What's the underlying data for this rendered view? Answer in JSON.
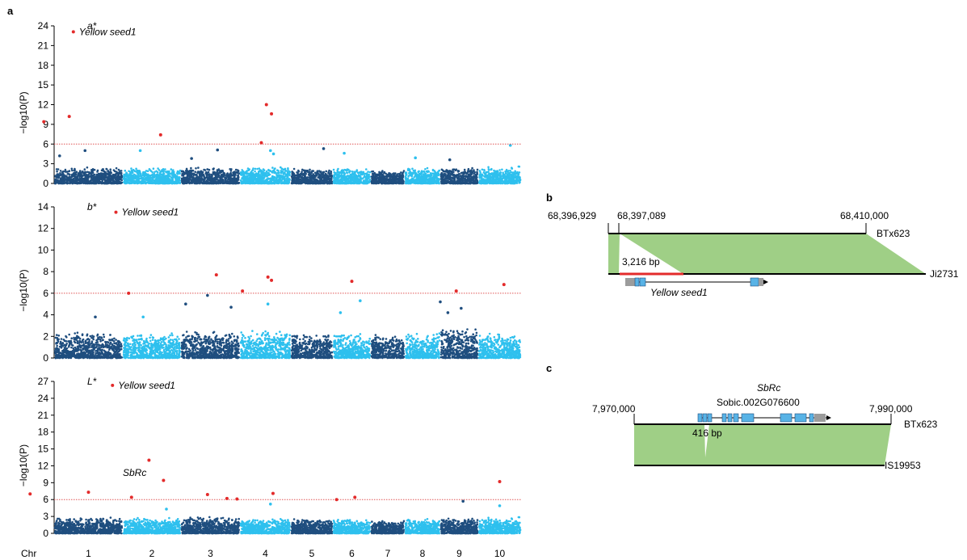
{
  "panel_labels": {
    "a": "a",
    "b": "b",
    "c": "c"
  },
  "colors": {
    "dark_blue": "#1f4e7f",
    "light_blue": "#2ec0ee",
    "signif_red": "#e32b2b",
    "threshold_line": "#e05555",
    "band_green": "#9fcf86",
    "deletion_red": "#e32b2b",
    "exon_blue": "#58b3e6",
    "utr_gray": "#9c9c9c"
  },
  "chart_data": [
    {
      "type": "scatter",
      "name": "manhattan-a-star",
      "trait": "a*",
      "annotation": "Yellow seed1",
      "ylabel": "−log10(P)",
      "ylim": [
        0,
        24
      ],
      "yticks": [
        0,
        3,
        6,
        9,
        12,
        15,
        18,
        21,
        24
      ],
      "threshold": 6,
      "categories": [
        "1",
        "2",
        "3",
        "4",
        "5",
        "6",
        "7",
        "8",
        "9",
        "10"
      ],
      "noise_max": [
        2.5,
        2.4,
        2.5,
        2.6,
        2.3,
        2.4,
        2.1,
        2.4,
        2.5,
        2.6
      ],
      "highlight_points": [
        {
          "chr": "1",
          "pos": 0.28,
          "y": 23.1
        },
        {
          "chr": "1",
          "pos": -0.15,
          "y": 9.4
        },
        {
          "chr": "1",
          "pos": 0.22,
          "y": 10.2
        },
        {
          "chr": "2",
          "pos": 0.65,
          "y": 7.4
        },
        {
          "chr": "4",
          "pos": 0.52,
          "y": 12.0
        },
        {
          "chr": "4",
          "pos": 0.62,
          "y": 10.6
        },
        {
          "chr": "4",
          "pos": 0.42,
          "y": 6.2
        }
      ],
      "sub_points": [
        {
          "chr": "1",
          "pos": 0.08,
          "y": 4.2
        },
        {
          "chr": "1",
          "pos": 0.45,
          "y": 5.0
        },
        {
          "chr": "2",
          "pos": 0.3,
          "y": 5.0
        },
        {
          "chr": "3",
          "pos": 0.18,
          "y": 3.8
        },
        {
          "chr": "3",
          "pos": 0.62,
          "y": 5.1
        },
        {
          "chr": "4",
          "pos": 0.6,
          "y": 5.0
        },
        {
          "chr": "4",
          "pos": 0.66,
          "y": 4.5
        },
        {
          "chr": "5",
          "pos": 0.78,
          "y": 5.3
        },
        {
          "chr": "6",
          "pos": 0.3,
          "y": 4.6
        },
        {
          "chr": "8",
          "pos": 0.3,
          "y": 3.9
        },
        {
          "chr": "9",
          "pos": 0.25,
          "y": 3.6
        },
        {
          "chr": "10",
          "pos": 0.75,
          "y": 5.8
        }
      ]
    },
    {
      "type": "scatter",
      "name": "manhattan-b-star",
      "trait": "b*",
      "annotation": "Yellow seed1",
      "ylabel": "−log10(P)",
      "ylim": [
        0,
        14
      ],
      "yticks": [
        0,
        2,
        4,
        6,
        8,
        10,
        12,
        14
      ],
      "threshold": 6,
      "categories": [
        "1",
        "2",
        "3",
        "4",
        "5",
        "6",
        "7",
        "8",
        "9",
        "10"
      ],
      "noise_max": [
        2.4,
        2.3,
        2.6,
        2.6,
        2.3,
        2.3,
        2.2,
        2.4,
        2.8,
        2.4
      ],
      "highlight_points": [
        {
          "chr": "1",
          "pos": 0.9,
          "y": 13.5
        },
        {
          "chr": "2",
          "pos": 0.1,
          "y": 6.0
        },
        {
          "chr": "3",
          "pos": 0.6,
          "y": 7.7
        },
        {
          "chr": "4",
          "pos": 0.05,
          "y": 6.2
        },
        {
          "chr": "4",
          "pos": 0.55,
          "y": 7.5
        },
        {
          "chr": "4",
          "pos": 0.62,
          "y": 7.2
        },
        {
          "chr": "6",
          "pos": 0.5,
          "y": 7.1
        },
        {
          "chr": "9",
          "pos": 0.42,
          "y": 6.2
        },
        {
          "chr": "10",
          "pos": 0.6,
          "y": 6.8
        }
      ],
      "sub_points": [
        {
          "chr": "1",
          "pos": 0.6,
          "y": 3.8
        },
        {
          "chr": "2",
          "pos": 0.35,
          "y": 3.8
        },
        {
          "chr": "3",
          "pos": 0.08,
          "y": 5.0
        },
        {
          "chr": "3",
          "pos": 0.45,
          "y": 5.8
        },
        {
          "chr": "3",
          "pos": 0.85,
          "y": 4.7
        },
        {
          "chr": "4",
          "pos": 0.55,
          "y": 5.0
        },
        {
          "chr": "6",
          "pos": 0.2,
          "y": 4.2
        },
        {
          "chr": "6",
          "pos": 0.72,
          "y": 5.3
        },
        {
          "chr": "9",
          "pos": 0.0,
          "y": 5.2
        },
        {
          "chr": "9",
          "pos": 0.55,
          "y": 4.6
        },
        {
          "chr": "9",
          "pos": 0.2,
          "y": 4.2
        }
      ]
    },
    {
      "type": "scatter",
      "name": "manhattan-l-star",
      "trait": "L*",
      "annotation": "Yellow seed1",
      "annotation2": "SbRc",
      "ylabel": "−log10(P)",
      "ylim": [
        0,
        27
      ],
      "yticks": [
        0,
        3,
        6,
        9,
        12,
        15,
        18,
        21,
        24,
        27
      ],
      "threshold": 6,
      "categories": [
        "1",
        "2",
        "3",
        "4",
        "5",
        "6",
        "7",
        "8",
        "9",
        "10"
      ],
      "noise_max": [
        2.8,
        2.8,
        3.0,
        2.7,
        2.6,
        2.6,
        2.4,
        2.6,
        2.8,
        2.9
      ],
      "highlight_points": [
        {
          "chr": "1",
          "pos": 0.85,
          "y": 26.3
        },
        {
          "chr": "1",
          "pos": -0.35,
          "y": 7.0
        },
        {
          "chr": "1",
          "pos": 0.5,
          "y": 7.3
        },
        {
          "chr": "2",
          "pos": 0.15,
          "y": 6.4
        },
        {
          "chr": "2",
          "pos": 0.45,
          "y": 13.0
        },
        {
          "chr": "2",
          "pos": 0.7,
          "y": 9.4
        },
        {
          "chr": "3",
          "pos": 0.45,
          "y": 6.9
        },
        {
          "chr": "3",
          "pos": 0.78,
          "y": 6.2
        },
        {
          "chr": "3",
          "pos": 0.95,
          "y": 6.1
        },
        {
          "chr": "4",
          "pos": 0.65,
          "y": 7.1
        },
        {
          "chr": "6",
          "pos": 0.1,
          "y": 6.0
        },
        {
          "chr": "6",
          "pos": 0.58,
          "y": 6.4
        },
        {
          "chr": "10",
          "pos": 0.5,
          "y": 9.2
        }
      ],
      "sub_points": [
        {
          "chr": "2",
          "pos": 0.75,
          "y": 4.3
        },
        {
          "chr": "4",
          "pos": 0.6,
          "y": 5.2
        },
        {
          "chr": "9",
          "pos": 0.6,
          "y": 5.7
        },
        {
          "chr": "10",
          "pos": 0.5,
          "y": 4.9
        }
      ],
      "xlabel": "Chr"
    }
  ],
  "panel_b": {
    "coord_left": "68,396,929",
    "coord_mid": "68,397,089",
    "coord_right": "68,410,000",
    "ref_label": "BTx623",
    "alt_label": "Ji2731",
    "deletion_label": "3,216 bp",
    "gene_label": "Yellow seed1"
  },
  "panel_c": {
    "coord_left": "7,970,000",
    "coord_right": "7,990,000",
    "ref_label": "BTx623",
    "alt_label": "IS19953",
    "gene_name": "SbRc",
    "gene_id": "Sobic.002G076600",
    "deletion_label": "416 bp"
  }
}
